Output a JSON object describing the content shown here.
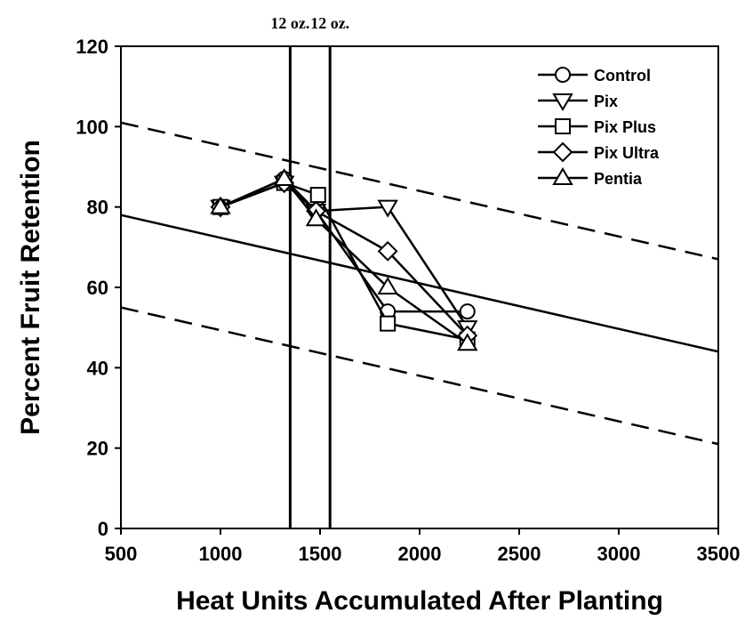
{
  "chart_data": {
    "type": "line",
    "title": "",
    "xlabel": "Heat Units Accumulated After Planting",
    "ylabel": "Percent Fruit Retention",
    "xlim": [
      500,
      3500
    ],
    "ylim": [
      0,
      120
    ],
    "x_ticks": [
      500,
      1000,
      1500,
      2000,
      2500,
      3000,
      3500
    ],
    "y_ticks": [
      0,
      20,
      40,
      60,
      80,
      100,
      120
    ],
    "grid": false,
    "legend_position": "top-right",
    "series": [
      {
        "name": "Control",
        "marker": "circle",
        "points": [
          [
            1000,
            80
          ],
          [
            1320,
            87
          ],
          [
            1480,
            79
          ],
          [
            1840,
            54
          ],
          [
            2240,
            54
          ]
        ]
      },
      {
        "name": "Pix",
        "marker": "triangle-down",
        "points": [
          [
            1000,
            80
          ],
          [
            1320,
            86
          ],
          [
            1480,
            79
          ],
          [
            1840,
            80
          ],
          [
            2240,
            50
          ]
        ]
      },
      {
        "name": "Pix Plus",
        "marker": "square",
        "points": [
          [
            1000,
            80
          ],
          [
            1320,
            86
          ],
          [
            1490,
            83
          ],
          [
            1840,
            51
          ],
          [
            2240,
            47
          ]
        ]
      },
      {
        "name": "Pix Ultra",
        "marker": "diamond",
        "points": [
          [
            1000,
            80
          ],
          [
            1320,
            86
          ],
          [
            1480,
            79
          ],
          [
            1840,
            69
          ],
          [
            2240,
            48
          ]
        ]
      },
      {
        "name": "Pentia",
        "marker": "triangle-up",
        "points": [
          [
            1000,
            80
          ],
          [
            1320,
            87
          ],
          [
            1480,
            77
          ],
          [
            1840,
            60
          ],
          [
            2240,
            46
          ]
        ]
      }
    ],
    "reference_lines": {
      "solid": {
        "from": [
          500,
          78
        ],
        "to": [
          3500,
          44
        ]
      },
      "dashed_upper": {
        "from": [
          500,
          101
        ],
        "to": [
          3500,
          67
        ]
      },
      "dashed_lower": {
        "from": [
          500,
          55
        ],
        "to": [
          3500,
          21
        ]
      }
    },
    "vertical_markers": [
      {
        "x": 1350,
        "label": "12 oz."
      },
      {
        "x": 1550,
        "label": "12 oz."
      }
    ]
  }
}
